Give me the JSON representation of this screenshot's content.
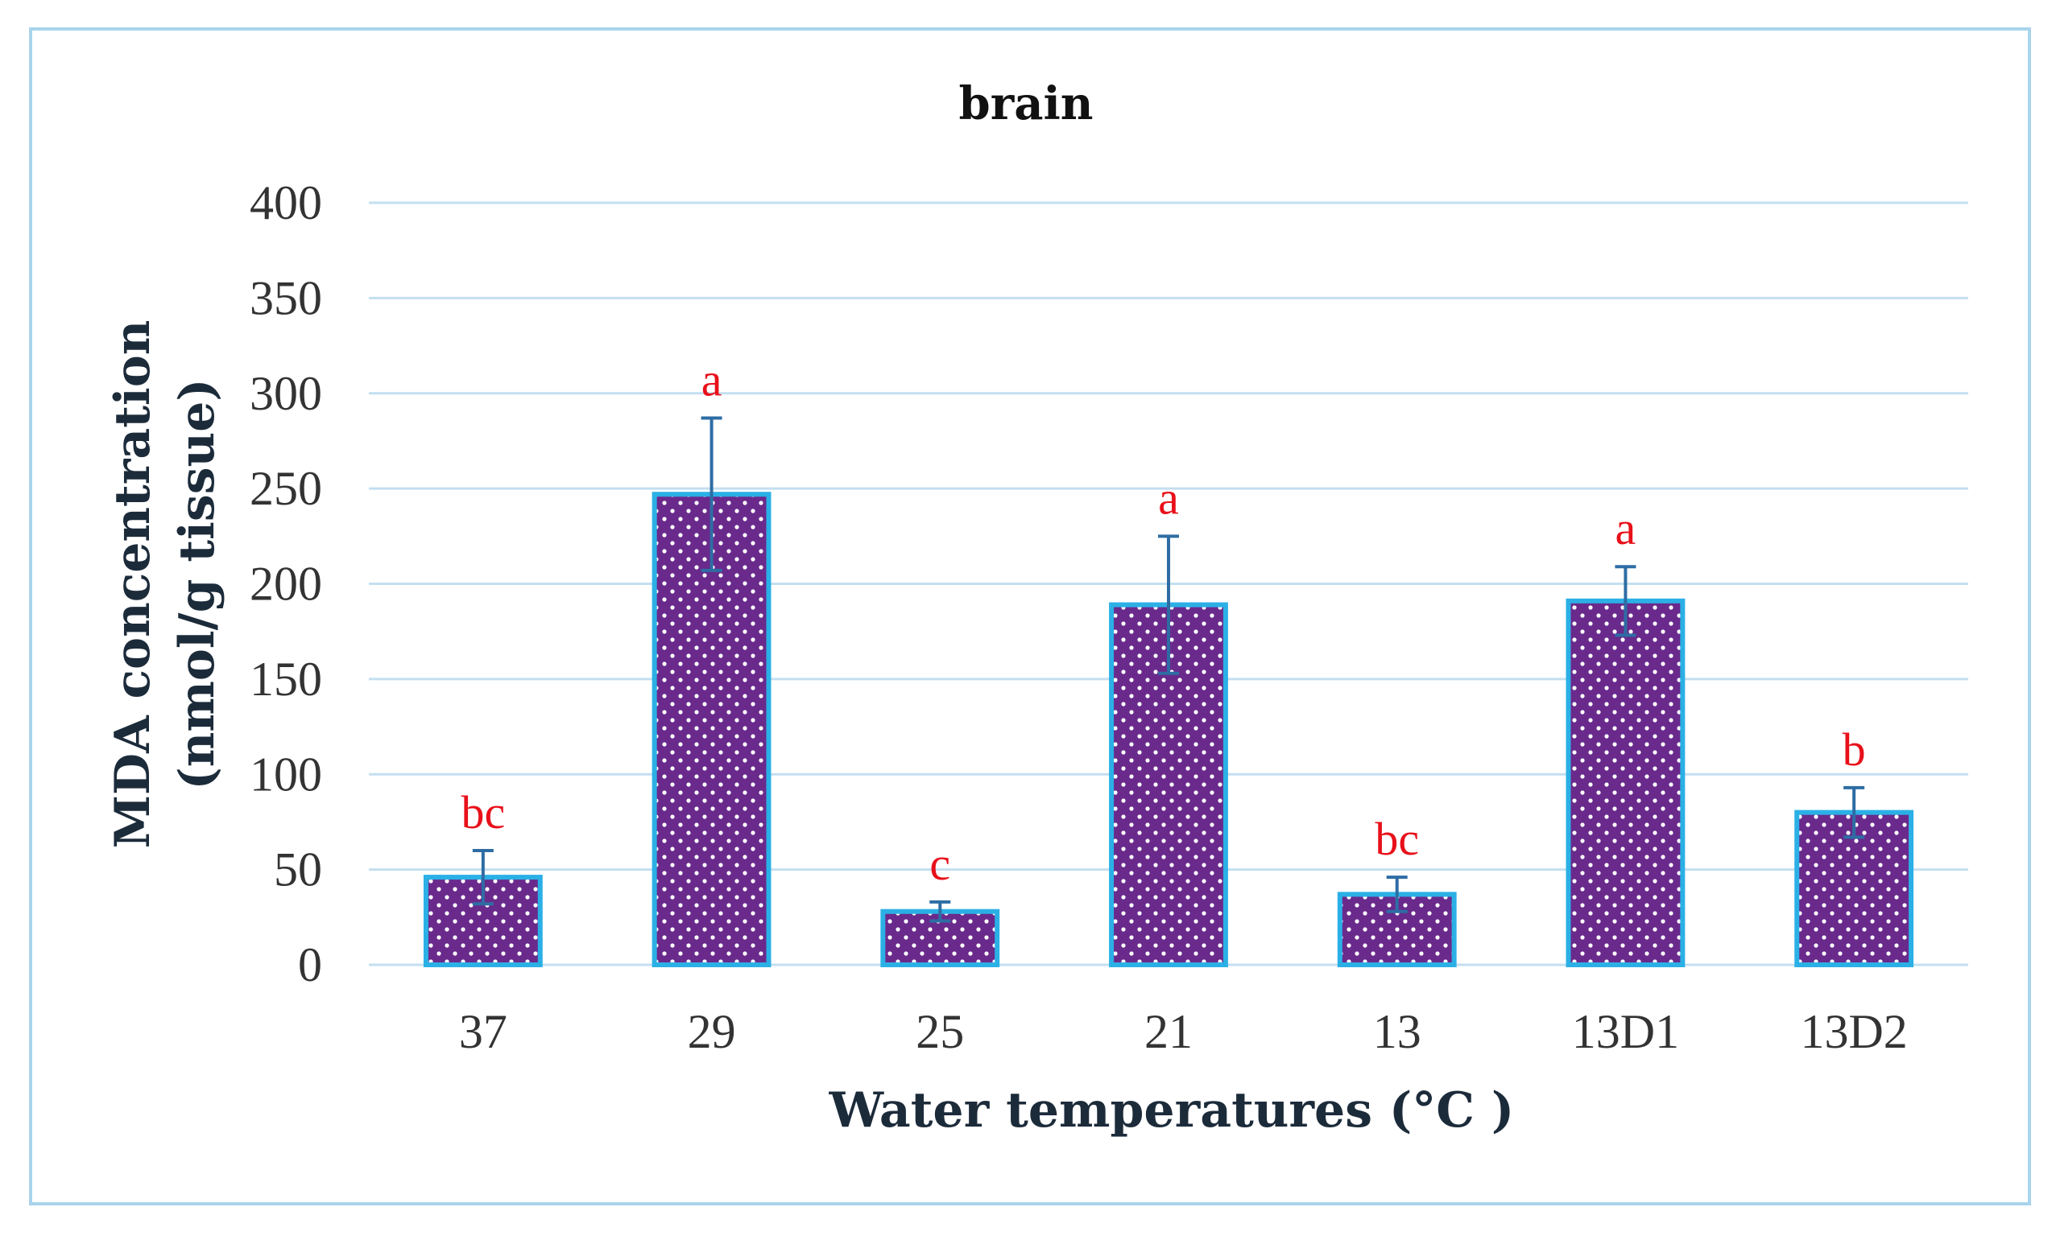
{
  "chart_data": {
    "type": "bar",
    "title": "brain",
    "xlabel": "Water temperatures (°C )",
    "ylabel_line1": "MDA concentration",
    "ylabel_line2": "(nmol/g tissue)",
    "ylim": [
      0,
      400
    ],
    "yticks": [
      0,
      50,
      100,
      150,
      200,
      250,
      300,
      350,
      400
    ],
    "categories": [
      "37",
      "29",
      "25",
      "21",
      "13",
      "13D1",
      "13D2"
    ],
    "values": [
      46,
      247,
      28,
      189,
      37,
      191,
      80
    ],
    "errors": [
      14,
      40,
      5,
      36,
      9,
      18,
      13
    ],
    "significance": [
      "bc",
      "a",
      "c",
      "a",
      "bc",
      "a",
      "b"
    ],
    "colors": {
      "bar_fill": "#6a2a8c",
      "bar_edge": "#2bb0e6",
      "dots": "#ffffff",
      "error_bar": "#2e6da4",
      "significance": "#e8101a",
      "grid": "#c3dff0"
    }
  }
}
